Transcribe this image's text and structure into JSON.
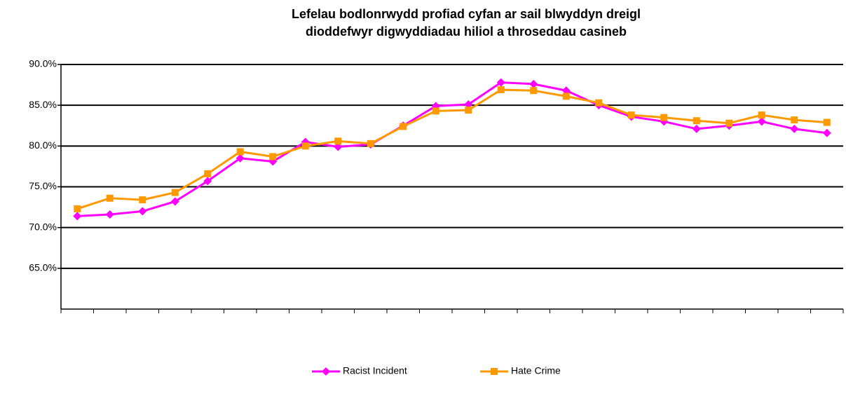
{
  "chart_data": {
    "type": "line",
    "title": [
      "Lefelau bodlonrwydd profiad cyfan ar sail blwyddyn dreigl",
      "dioddefwyr digwyddiadau hiliol a throseddau casineb"
    ],
    "categories": [
      null,
      null,
      null,
      null,
      null,
      null,
      null,
      null,
      null,
      null,
      null,
      null,
      null,
      null,
      null,
      null,
      null,
      null,
      null,
      null,
      null,
      null,
      null,
      null
    ],
    "series": [
      {
        "name": "Racist Incident",
        "color": "#ff00ff",
        "marker": "diamond",
        "values": [
          71.4,
          71.6,
          72.0,
          73.2,
          75.7,
          78.5,
          78.1,
          80.5,
          79.9,
          80.2,
          82.5,
          84.9,
          85.1,
          87.8,
          87.6,
          86.8,
          85.0,
          83.6,
          83.0,
          82.1,
          82.5,
          83.0,
          82.1,
          81.6
        ]
      },
      {
        "name": "Hate Crime",
        "color": "#ff9900",
        "marker": "square",
        "values": [
          72.3,
          73.6,
          73.4,
          74.3,
          76.6,
          79.3,
          78.7,
          80.0,
          80.6,
          80.3,
          82.4,
          84.3,
          84.4,
          86.9,
          86.8,
          86.1,
          85.3,
          83.8,
          83.5,
          83.1,
          82.8,
          83.8,
          83.2,
          82.9
        ]
      }
    ],
    "ylim": [
      60,
      90
    ],
    "yticks": [
      {
        "value": 65,
        "label": "65.0%"
      },
      {
        "value": 70,
        "label": "70.0%"
      },
      {
        "value": 75,
        "label": "75.0%"
      },
      {
        "value": 80,
        "label": "80.0%"
      },
      {
        "value": 85,
        "label": "85.0%"
      },
      {
        "value": 90,
        "label": "90.0%"
      }
    ],
    "grid": true,
    "legend": "bottom"
  }
}
